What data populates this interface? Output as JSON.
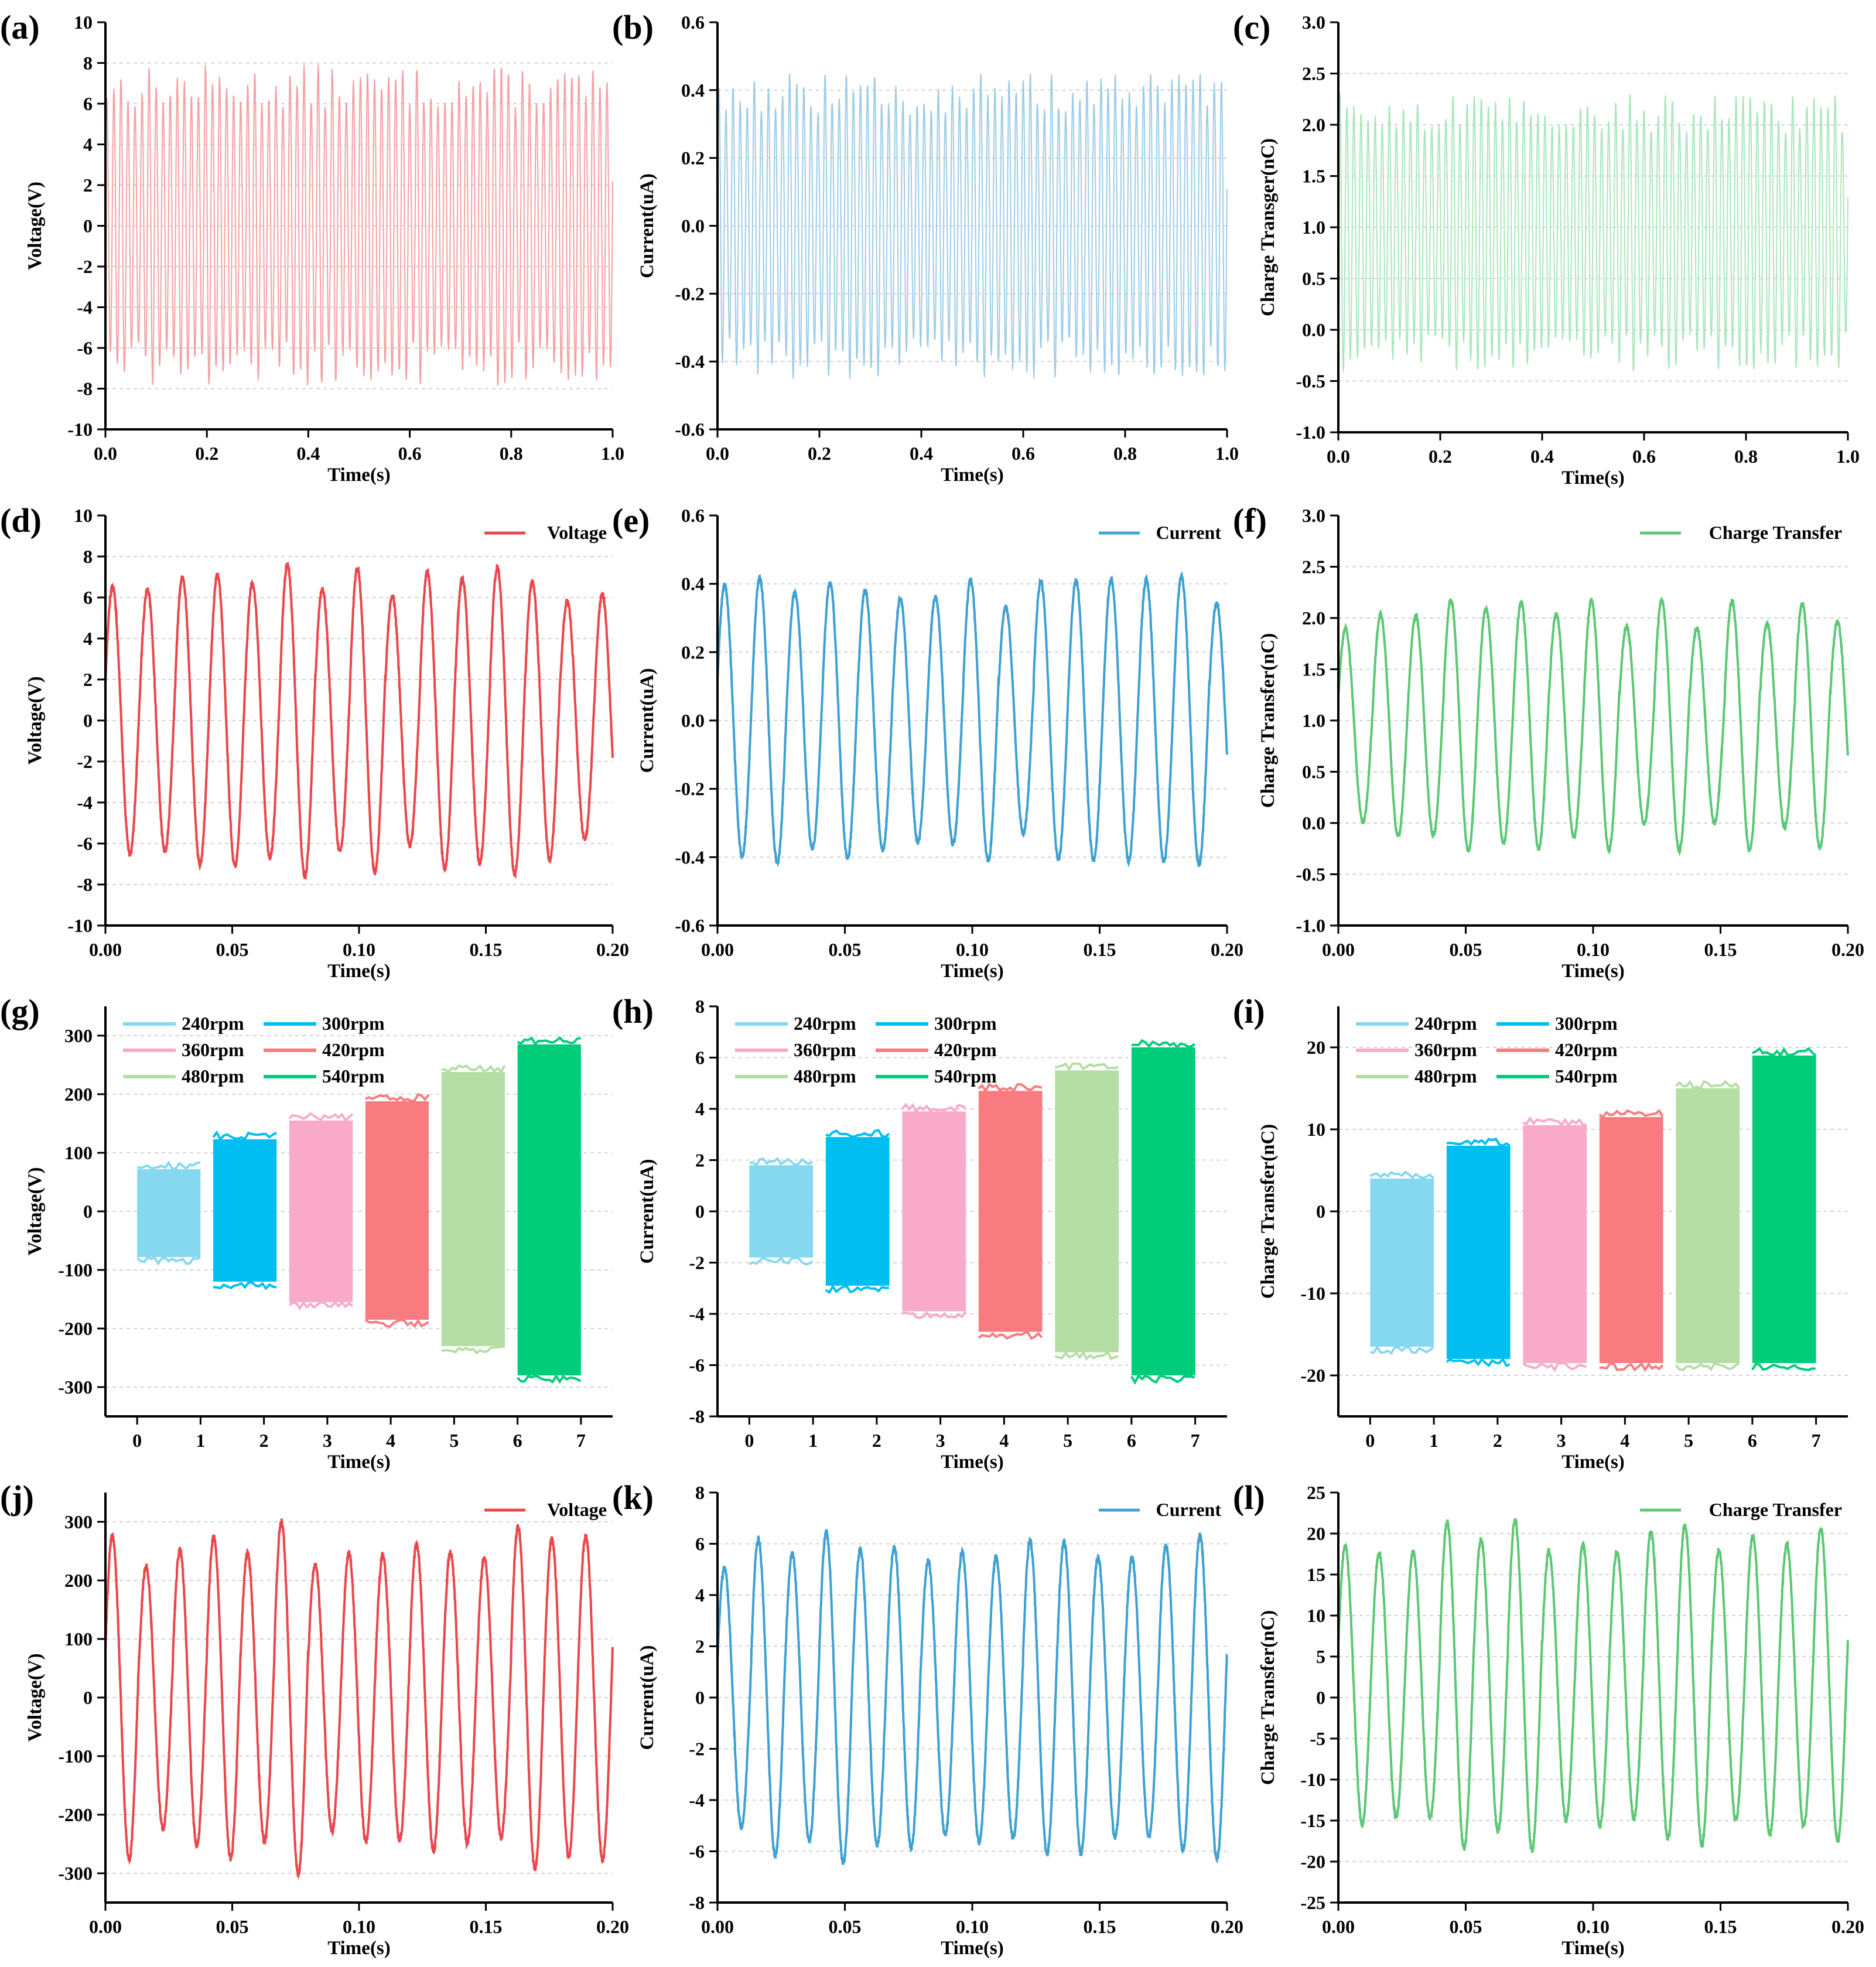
{
  "colors": {
    "voltage": "#e8474b",
    "current": "#3ea1d2",
    "charge": "#5cc774",
    "light_voltage": "#f4a0a2",
    "light_current": "#9dcbe6",
    "light_charge": "#a8e6bb"
  },
  "speed_colors": [
    "#86d8f0",
    "#00bff0",
    "#f8aac8",
    "#f87b80",
    "#b4dea4",
    "#00cc7a"
  ],
  "chart_data": [
    {
      "id": "a",
      "panel_label": "(a)",
      "type": "line",
      "xlabel": "Time(s)",
      "ylabel": "Voltage(V)",
      "xlim": [
        0,
        1
      ],
      "ylim": [
        -10,
        10
      ],
      "xticks": [
        0,
        0.2,
        0.4,
        0.6,
        0.8,
        1.0
      ],
      "xtick_labels": [
        "0.0",
        "0.2",
        "0.4",
        "0.6",
        "0.8",
        "1.0"
      ],
      "yticks": [
        -10,
        -8,
        -6,
        -4,
        -2,
        0,
        2,
        4,
        6,
        8,
        10
      ],
      "ytick_labels": [
        "-10",
        "-8",
        "-6",
        "-4",
        "-2",
        "0",
        "2",
        "4",
        "6",
        "8",
        "10"
      ],
      "series": [
        {
          "name": "Voltage",
          "color": "#f4a0a2",
          "cycles": 72,
          "amplitude": 7,
          "offset": 0,
          "duration": 1.0
        }
      ]
    },
    {
      "id": "b",
      "panel_label": "(b)",
      "type": "line",
      "xlabel": "Time(s)",
      "ylabel": "Current(uA)",
      "xlim": [
        0,
        1
      ],
      "ylim": [
        -0.6,
        0.6
      ],
      "xticks": [
        0,
        0.2,
        0.4,
        0.6,
        0.8,
        1.0
      ],
      "xtick_labels": [
        "0.0",
        "0.2",
        "0.4",
        "0.6",
        "0.8",
        "1.0"
      ],
      "yticks": [
        -0.6,
        -0.4,
        -0.2,
        0,
        0.2,
        0.4,
        0.6
      ],
      "ytick_labels": [
        "-0.6",
        "-0.4",
        "-0.2",
        "0.0",
        "0.2",
        "0.4",
        "0.6"
      ],
      "series": [
        {
          "name": "Current",
          "color": "#9dcbe6",
          "cycles": 72,
          "amplitude": 0.4,
          "offset": 0,
          "duration": 1.0
        }
      ]
    },
    {
      "id": "c",
      "panel_label": "(c)",
      "type": "line",
      "xlabel": "Time(s)",
      "ylabel": "Charge Transger(nC)",
      "xlim": [
        0,
        1
      ],
      "ylim": [
        -1,
        3
      ],
      "xticks": [
        0,
        0.2,
        0.4,
        0.6,
        0.8,
        1.0
      ],
      "xtick_labels": [
        "0.0",
        "0.2",
        "0.4",
        "0.6",
        "0.8",
        "1.0"
      ],
      "yticks": [
        -1,
        -0.5,
        0,
        0.5,
        1,
        1.5,
        2,
        2.5,
        3
      ],
      "ytick_labels": [
        "-1.0",
        "-0.5",
        "0.0",
        "0.5",
        "1.0",
        "1.5",
        "2.0",
        "2.5",
        "3.0"
      ],
      "series": [
        {
          "name": "Charge",
          "color": "#a8e6bb",
          "cycles": 72,
          "amplitude": 1.2,
          "offset": 0.95,
          "duration": 1.0
        }
      ]
    },
    {
      "id": "d",
      "panel_label": "(d)",
      "type": "line",
      "xlabel": "Time(s)",
      "ylabel": "Voltage(V)",
      "xlim": [
        0,
        0.2
      ],
      "ylim": [
        -10,
        10
      ],
      "xticks": [
        0,
        0.05,
        0.1,
        0.15,
        0.2
      ],
      "xtick_labels": [
        "0.00",
        "0.05",
        "0.10",
        "0.15",
        "0.20"
      ],
      "yticks": [
        -10,
        -8,
        -6,
        -4,
        -2,
        0,
        2,
        4,
        6,
        8,
        10
      ],
      "ytick_labels": [
        "-10",
        "-8",
        "-6",
        "-4",
        "-2",
        "0",
        "2",
        "4",
        "6",
        "8",
        "10"
      ],
      "legend": [
        "Voltage"
      ],
      "series": [
        {
          "name": "Voltage",
          "color": "#e8474b",
          "cycles": 14.5,
          "amplitude": 7,
          "offset": 0,
          "duration": 0.2
        }
      ]
    },
    {
      "id": "e",
      "panel_label": "(e)",
      "type": "line",
      "xlabel": "Time(s)",
      "ylabel": "Current(uA)",
      "xlim": [
        0,
        0.2
      ],
      "ylim": [
        -0.6,
        0.6
      ],
      "xticks": [
        0,
        0.05,
        0.1,
        0.15,
        0.2
      ],
      "xtick_labels": [
        "0.00",
        "0.05",
        "0.10",
        "0.15",
        "0.20"
      ],
      "yticks": [
        -0.6,
        -0.4,
        -0.2,
        0,
        0.2,
        0.4,
        0.6
      ],
      "ytick_labels": [
        "-0.6",
        "-0.4",
        "-0.2",
        "0.0",
        "0.2",
        "0.4",
        "0.6"
      ],
      "legend": [
        "Current"
      ],
      "series": [
        {
          "name": "Current",
          "color": "#3ea1d2",
          "cycles": 14.5,
          "amplitude": 0.38,
          "offset": 0,
          "duration": 0.2
        }
      ]
    },
    {
      "id": "f",
      "panel_label": "(f)",
      "type": "line",
      "xlabel": "Time(s)",
      "ylabel": "Charge Transfer(nC)",
      "xlim": [
        0,
        0.2
      ],
      "ylim": [
        -1,
        3
      ],
      "xticks": [
        0,
        0.05,
        0.1,
        0.15,
        0.2
      ],
      "xtick_labels": [
        "0.00",
        "0.05",
        "0.10",
        "0.15",
        "0.20"
      ],
      "yticks": [
        -1,
        -0.5,
        0,
        0.5,
        1,
        1.5,
        2,
        2.5,
        3
      ],
      "ytick_labels": [
        "-1.0",
        "-0.5",
        "0.0",
        "0.5",
        "1.0",
        "1.5",
        "2.0",
        "2.5",
        "3.0"
      ],
      "legend": [
        "Charge Transfer"
      ],
      "series": [
        {
          "name": "Charge Transfer",
          "color": "#5cc774",
          "cycles": 14.5,
          "amplitude": 1.1,
          "offset": 0.95,
          "duration": 0.2
        }
      ]
    },
    {
      "id": "g",
      "panel_label": "(g)",
      "type": "bar",
      "xlabel": "Time(s)",
      "ylabel": "Voltage(V)",
      "xlim": [
        -0.5,
        7.5
      ],
      "ylim": [
        -350,
        350
      ],
      "xticks": [
        0,
        1,
        2,
        3,
        4,
        5,
        6,
        7
      ],
      "xtick_labels": [
        "0",
        "1",
        "2",
        "3",
        "4",
        "5",
        "6",
        "7"
      ],
      "yticks": [
        -300,
        -200,
        -100,
        0,
        100,
        200,
        300
      ],
      "ytick_labels": [
        "-300",
        "-200",
        "-100",
        "0",
        "100",
        "200",
        "300"
      ],
      "legend": [
        "240rpm",
        "300rpm",
        "360rpm",
        "420rpm",
        "480rpm",
        "540rpm"
      ],
      "blocks": [
        {
          "x": [
            0,
            1
          ],
          "range": [
            -78,
            72
          ]
        },
        {
          "x": [
            1.2,
            2.2
          ],
          "range": [
            -120,
            123
          ]
        },
        {
          "x": [
            2.4,
            3.4
          ],
          "range": [
            -155,
            155
          ]
        },
        {
          "x": [
            3.6,
            4.6
          ],
          "range": [
            -185,
            188
          ]
        },
        {
          "x": [
            4.8,
            5.8
          ],
          "range": [
            -230,
            238
          ]
        },
        {
          "x": [
            6.0,
            7.0
          ],
          "range": [
            -280,
            285
          ]
        }
      ]
    },
    {
      "id": "h",
      "panel_label": "(h)",
      "type": "bar",
      "xlabel": "Time(s)",
      "ylabel": "Current(uA)",
      "xlim": [
        -0.5,
        7.5
      ],
      "ylim": [
        -8,
        8
      ],
      "xticks": [
        0,
        1,
        2,
        3,
        4,
        5,
        6,
        7
      ],
      "xtick_labels": [
        "0",
        "1",
        "2",
        "3",
        "4",
        "5",
        "6",
        "7"
      ],
      "yticks": [
        -8,
        -6,
        -4,
        -2,
        0,
        2,
        4,
        6,
        8
      ],
      "ytick_labels": [
        "-8",
        "-6",
        "-4",
        "-2",
        "0",
        "2",
        "4",
        "6",
        "8"
      ],
      "legend": [
        "240rpm",
        "300rpm",
        "360rpm",
        "420rpm",
        "480rpm",
        "540rpm"
      ],
      "blocks": [
        {
          "x": [
            0,
            1
          ],
          "range": [
            -1.8,
            1.8
          ]
        },
        {
          "x": [
            1.2,
            2.2
          ],
          "range": [
            -2.9,
            2.9
          ]
        },
        {
          "x": [
            2.4,
            3.4
          ],
          "range": [
            -3.9,
            3.9
          ]
        },
        {
          "x": [
            3.6,
            4.6
          ],
          "range": [
            -4.7,
            4.7
          ]
        },
        {
          "x": [
            4.8,
            5.8
          ],
          "range": [
            -5.5,
            5.5
          ]
        },
        {
          "x": [
            6.0,
            7.0
          ],
          "range": [
            -6.4,
            6.4
          ]
        }
      ]
    },
    {
      "id": "i",
      "panel_label": "(i)",
      "type": "bar",
      "xlabel": "Time(s)",
      "ylabel": "Charge Transfer(nC)",
      "xlim": [
        -0.5,
        7.5
      ],
      "ylim": [
        -25,
        25
      ],
      "xticks": [
        0,
        1,
        2,
        3,
        4,
        5,
        6,
        7
      ],
      "xtick_labels": [
        "0",
        "1",
        "2",
        "3",
        "4",
        "5",
        "6",
        "7"
      ],
      "yticks": [
        -20,
        -10,
        0,
        10,
        20
      ],
      "ytick_labels": [
        "-20",
        "-10",
        "0",
        "10",
        "20"
      ],
      "legend": [
        "240rpm",
        "300rpm",
        "360rpm",
        "420rpm",
        "480rpm",
        "540rpm"
      ],
      "blocks": [
        {
          "x": [
            0,
            1
          ],
          "range": [
            -16.5,
            4
          ]
        },
        {
          "x": [
            1.2,
            2.2
          ],
          "range": [
            -18,
            8
          ]
        },
        {
          "x": [
            2.4,
            3.4
          ],
          "range": [
            -18.5,
            10.5
          ]
        },
        {
          "x": [
            3.6,
            4.6
          ],
          "range": [
            -18.5,
            11.5
          ]
        },
        {
          "x": [
            4.8,
            5.8
          ],
          "range": [
            -18.5,
            15
          ]
        },
        {
          "x": [
            6.0,
            7.0
          ],
          "range": [
            -18.5,
            19
          ]
        }
      ]
    },
    {
      "id": "j",
      "panel_label": "(j)",
      "type": "line",
      "xlabel": "Time(s)",
      "ylabel": "Voltage(V)",
      "xlim": [
        0,
        0.2
      ],
      "ylim": [
        -350,
        350
      ],
      "xticks": [
        0,
        0.05,
        0.1,
        0.15,
        0.2
      ],
      "xtick_labels": [
        "0.00",
        "0.05",
        "0.10",
        "0.15",
        "0.20"
      ],
      "yticks": [
        -300,
        -200,
        -100,
        0,
        100,
        200,
        300
      ],
      "ytick_labels": [
        "-300",
        "-200",
        "-100",
        "0",
        "100",
        "200",
        "300"
      ],
      "legend": [
        "Voltage"
      ],
      "series": [
        {
          "name": "Voltage",
          "color": "#e8474b",
          "cycles": 15,
          "amplitude": 272,
          "offset": 0,
          "duration": 0.2
        }
      ]
    },
    {
      "id": "k",
      "panel_label": "(k)",
      "type": "line",
      "xlabel": "Time(s)",
      "ylabel": "Current(uA)",
      "xlim": [
        0,
        0.2
      ],
      "ylim": [
        -8,
        8
      ],
      "xticks": [
        0,
        0.05,
        0.1,
        0.15,
        0.2
      ],
      "xtick_labels": [
        "0.00",
        "0.05",
        "0.10",
        "0.15",
        "0.20"
      ],
      "yticks": [
        -8,
        -6,
        -4,
        -2,
        0,
        2,
        4,
        6,
        8
      ],
      "ytick_labels": [
        "-8",
        "-6",
        "-4",
        "-2",
        "0",
        "2",
        "4",
        "6",
        "8"
      ],
      "legend": [
        "Current"
      ],
      "series": [
        {
          "name": "Current",
          "color": "#3ea1d2",
          "cycles": 15,
          "amplitude": 6.1,
          "offset": 0,
          "duration": 0.2
        }
      ]
    },
    {
      "id": "l",
      "panel_label": "(l)",
      "type": "line",
      "xlabel": "Time(s)",
      "ylabel": "Charge Transfer(nC)",
      "xlim": [
        0,
        0.2
      ],
      "ylim": [
        -25,
        25
      ],
      "xticks": [
        0,
        0.05,
        0.1,
        0.15,
        0.2
      ],
      "xtick_labels": [
        "0.00",
        "0.05",
        "0.10",
        "0.15",
        "0.20"
      ],
      "yticks": [
        -25,
        -20,
        -15,
        -10,
        -5,
        0,
        5,
        10,
        15,
        20,
        25
      ],
      "ytick_labels": [
        "-25",
        "-20",
        "-15",
        "-10",
        "-5",
        "0",
        "5",
        "10",
        "15",
        "20",
        "25"
      ],
      "legend": [
        "Charge Transfer"
      ],
      "series": [
        {
          "name": "Charge Transfer",
          "color": "#5cc774",
          "cycles": 15,
          "amplitude": 18,
          "offset": 1.5,
          "duration": 0.2
        }
      ]
    }
  ]
}
